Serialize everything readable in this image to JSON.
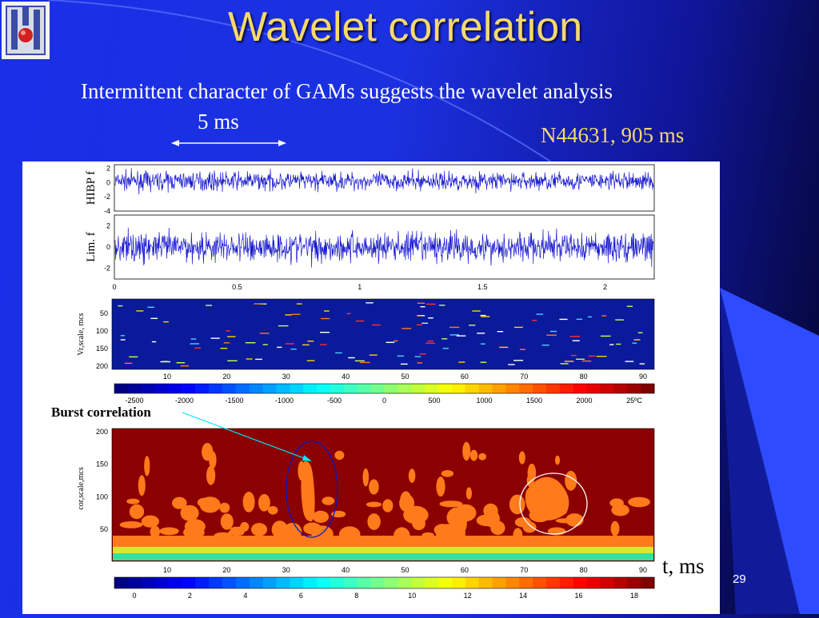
{
  "slide": {
    "title": "Wavelet correlation",
    "subtitle": "Intermittent character of GAMs suggests the wavelet analysis",
    "time_scale_label": "5 ms",
    "shot_label": "N44631, 905 ms",
    "burst_label": "Burst correlation",
    "time_axis_label": "t, ms",
    "page_number": "29"
  },
  "colors": {
    "background": "#1a2fe8",
    "title": "#f5d96b",
    "signal": "#1a1ad0",
    "map_background": "#8b0000",
    "map_blob": "#ff7a1a"
  },
  "chart_data": [
    {
      "type": "line",
      "ylabel": "HIBP f",
      "y_ticks": [
        "2",
        "0",
        "-2",
        "-4"
      ],
      "x_ticks": [
        "0",
        "0.5",
        "1",
        "1.5",
        "2"
      ],
      "ylim": [
        -4,
        2.5
      ]
    },
    {
      "type": "line",
      "ylabel": "Lim. f",
      "y_ticks": [
        "2",
        "0",
        "-2"
      ],
      "x_ticks": [
        "0",
        "0.5",
        "1",
        "1.5",
        "2"
      ],
      "ylim": [
        -3,
        3
      ]
    },
    {
      "type": "heatmap",
      "ylabel": "Vr,scale, mcs",
      "y_ticks": [
        "50",
        "100",
        "150",
        "200"
      ],
      "x_ticks": [
        "10",
        "20",
        "30",
        "40",
        "50",
        "60",
        "70",
        "80",
        "90"
      ],
      "colorbar_ticks": [
        "-2500",
        "-2000",
        "-1500",
        "-1000",
        "-500",
        "0",
        "500",
        "1000",
        "1500",
        "2000",
        "25ºC"
      ]
    },
    {
      "type": "heatmap",
      "ylabel": "cor,scale,mcs",
      "y_ticks": [
        "200",
        "150",
        "100",
        "50"
      ],
      "x_ticks": [
        "10",
        "20",
        "30",
        "40",
        "50",
        "60",
        "70",
        "80",
        "90"
      ],
      "colorbar_ticks": [
        "0",
        "2",
        "4",
        "6",
        "8",
        "10",
        "12",
        "14",
        "16",
        "18"
      ]
    }
  ]
}
